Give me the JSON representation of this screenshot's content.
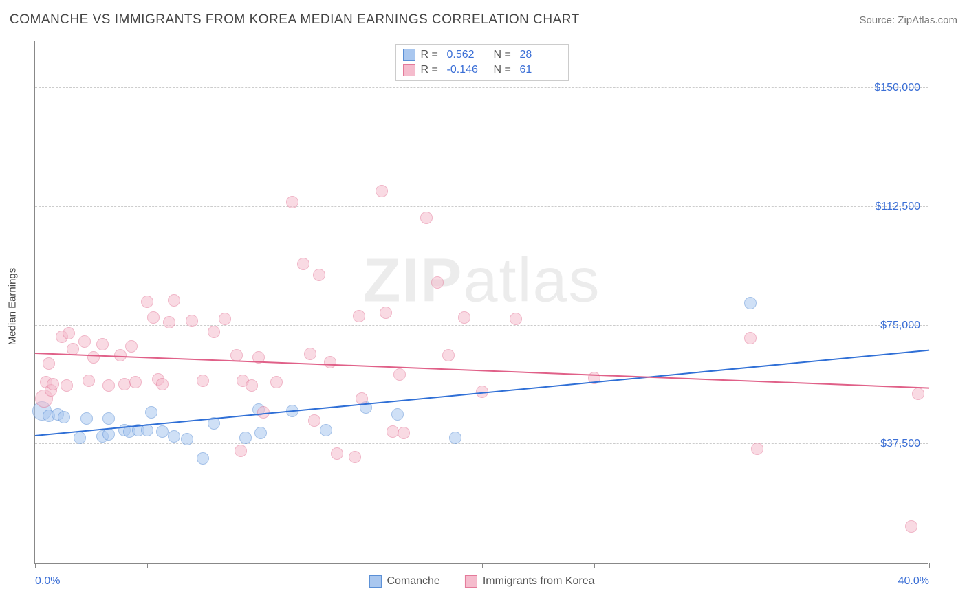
{
  "title": "COMANCHE VS IMMIGRANTS FROM KOREA MEDIAN EARNINGS CORRELATION CHART",
  "source": "Source: ZipAtlas.com",
  "watermark_a": "ZIP",
  "watermark_b": "atlas",
  "chart": {
    "type": "scatter",
    "y_axis_label": "Median Earnings",
    "xlim": [
      0,
      40
    ],
    "ylim": [
      0,
      165000
    ],
    "x_ticks": [
      0,
      5,
      10,
      15,
      20,
      25,
      30,
      35,
      40
    ],
    "x_tick_labels_shown": {
      "0": "0.0%",
      "40": "40.0%"
    },
    "y_gridlines": [
      37500,
      75000,
      112500,
      150000
    ],
    "y_tick_labels": [
      "$37,500",
      "$75,000",
      "$112,500",
      "$150,000"
    ],
    "background_color": "#ffffff",
    "grid_color": "#cccccc",
    "axis_color": "#888888",
    "tick_label_color": "#3b6fd6",
    "marker_radius": 9,
    "marker_opacity": 0.55,
    "series": [
      {
        "name": "Comanche",
        "color_fill": "#a9c7ef",
        "color_stroke": "#5a8fd6",
        "trend_color": "#2f6fd6",
        "R": "0.562",
        "N": "28",
        "trend": {
          "x1": 0,
          "y1": 40000,
          "x2": 40,
          "y2": 67000
        },
        "points": [
          {
            "x": 0.3,
            "y": 48000,
            "r": 14
          },
          {
            "x": 0.6,
            "y": 46500
          },
          {
            "x": 1.0,
            "y": 47000
          },
          {
            "x": 1.3,
            "y": 46000
          },
          {
            "x": 2.0,
            "y": 39500
          },
          {
            "x": 2.3,
            "y": 45500
          },
          {
            "x": 3.0,
            "y": 40000
          },
          {
            "x": 3.3,
            "y": 40500
          },
          {
            "x": 3.3,
            "y": 45500
          },
          {
            "x": 4.0,
            "y": 42000
          },
          {
            "x": 4.2,
            "y": 41500
          },
          {
            "x": 4.6,
            "y": 42000
          },
          {
            "x": 5.0,
            "y": 42000
          },
          {
            "x": 5.2,
            "y": 47500
          },
          {
            "x": 5.7,
            "y": 41500
          },
          {
            "x": 6.2,
            "y": 40000
          },
          {
            "x": 6.8,
            "y": 39000
          },
          {
            "x": 7.5,
            "y": 33000
          },
          {
            "x": 8.0,
            "y": 44000
          },
          {
            "x": 9.4,
            "y": 39500
          },
          {
            "x": 10.0,
            "y": 48500
          },
          {
            "x": 10.1,
            "y": 41000
          },
          {
            "x": 11.5,
            "y": 48000
          },
          {
            "x": 13.0,
            "y": 42000
          },
          {
            "x": 14.8,
            "y": 49000
          },
          {
            "x": 16.2,
            "y": 47000
          },
          {
            "x": 18.8,
            "y": 39500
          },
          {
            "x": 32.0,
            "y": 82000
          }
        ]
      },
      {
        "name": "Immigrants from Korea",
        "color_fill": "#f5bccd",
        "color_stroke": "#e47a9a",
        "trend_color": "#e06088",
        "R": "-0.146",
        "N": "61",
        "trend": {
          "x1": 0,
          "y1": 66000,
          "x2": 40,
          "y2": 55000
        },
        "points": [
          {
            "x": 0.4,
            "y": 52000,
            "r": 13
          },
          {
            "x": 0.5,
            "y": 57000
          },
          {
            "x": 0.6,
            "y": 63000
          },
          {
            "x": 0.7,
            "y": 54500
          },
          {
            "x": 0.8,
            "y": 56500
          },
          {
            "x": 1.2,
            "y": 71500
          },
          {
            "x": 1.4,
            "y": 56000
          },
          {
            "x": 1.5,
            "y": 72500
          },
          {
            "x": 1.7,
            "y": 67500
          },
          {
            "x": 2.2,
            "y": 70000
          },
          {
            "x": 2.4,
            "y": 57500
          },
          {
            "x": 2.6,
            "y": 65000
          },
          {
            "x": 3.0,
            "y": 69000
          },
          {
            "x": 3.3,
            "y": 56000
          },
          {
            "x": 3.8,
            "y": 65500
          },
          {
            "x": 4.0,
            "y": 56500
          },
          {
            "x": 4.3,
            "y": 68500
          },
          {
            "x": 4.5,
            "y": 57000
          },
          {
            "x": 5.0,
            "y": 82500
          },
          {
            "x": 5.3,
            "y": 77500
          },
          {
            "x": 5.5,
            "y": 58000
          },
          {
            "x": 5.7,
            "y": 56500
          },
          {
            "x": 6.0,
            "y": 76000
          },
          {
            "x": 6.2,
            "y": 83000
          },
          {
            "x": 7.0,
            "y": 76500
          },
          {
            "x": 7.5,
            "y": 57500
          },
          {
            "x": 8.0,
            "y": 73000
          },
          {
            "x": 8.5,
            "y": 77000
          },
          {
            "x": 9.0,
            "y": 65500
          },
          {
            "x": 9.2,
            "y": 35500
          },
          {
            "x": 9.3,
            "y": 57500
          },
          {
            "x": 9.7,
            "y": 56000
          },
          {
            "x": 10.0,
            "y": 65000
          },
          {
            "x": 10.2,
            "y": 47500
          },
          {
            "x": 10.8,
            "y": 57000
          },
          {
            "x": 11.5,
            "y": 114000
          },
          {
            "x": 12.0,
            "y": 94500
          },
          {
            "x": 12.3,
            "y": 66000
          },
          {
            "x": 12.5,
            "y": 45000
          },
          {
            "x": 12.7,
            "y": 91000
          },
          {
            "x": 13.2,
            "y": 63500
          },
          {
            "x": 13.5,
            "y": 34500
          },
          {
            "x": 14.3,
            "y": 33500
          },
          {
            "x": 14.5,
            "y": 78000
          },
          {
            "x": 14.6,
            "y": 52000
          },
          {
            "x": 15.5,
            "y": 117500
          },
          {
            "x": 15.7,
            "y": 79000
          },
          {
            "x": 16.0,
            "y": 41500
          },
          {
            "x": 16.3,
            "y": 59500
          },
          {
            "x": 16.5,
            "y": 41000
          },
          {
            "x": 17.5,
            "y": 109000
          },
          {
            "x": 18.0,
            "y": 88500
          },
          {
            "x": 18.5,
            "y": 65500
          },
          {
            "x": 19.2,
            "y": 77500
          },
          {
            "x": 20.0,
            "y": 54000
          },
          {
            "x": 21.5,
            "y": 77000
          },
          {
            "x": 25.0,
            "y": 58500
          },
          {
            "x": 32.0,
            "y": 71000
          },
          {
            "x": 32.3,
            "y": 36000
          },
          {
            "x": 39.2,
            "y": 11500
          },
          {
            "x": 39.5,
            "y": 53500
          }
        ]
      }
    ]
  },
  "legend_top_labels": {
    "R": "R =",
    "N": "N ="
  },
  "legend_bottom_labels": [
    "Comanche",
    "Immigrants from Korea"
  ]
}
